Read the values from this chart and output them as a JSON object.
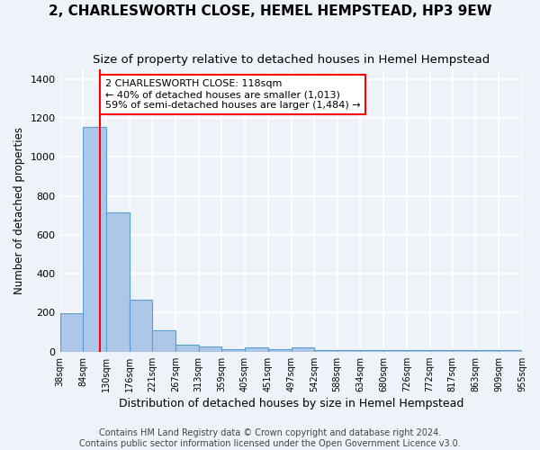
{
  "title": "2, CHARLESWORTH CLOSE, HEMEL HEMPSTEAD, HP3 9EW",
  "subtitle": "Size of property relative to detached houses in Hemel Hempstead",
  "xlabel": "Distribution of detached houses by size in Hemel Hempstead",
  "ylabel": "Number of detached properties",
  "bar_edges": [
    38,
    84,
    130,
    176,
    221,
    267,
    313,
    359,
    405,
    451,
    497,
    542,
    588,
    634,
    680,
    726,
    772,
    817,
    863,
    909,
    955
  ],
  "bar_heights": [
    197,
    1152,
    717,
    268,
    111,
    35,
    28,
    11,
    20,
    11,
    20,
    8,
    8,
    8,
    8,
    8,
    8,
    8,
    8,
    8
  ],
  "bar_color": "#aec6e8",
  "bar_edge_color": "#5a9fd4",
  "vline_x": 118,
  "annotation_text": "2 CHARLESWORTH CLOSE: 118sqm\n← 40% of detached houses are smaller (1,013)\n59% of semi-detached houses are larger (1,484) →",
  "annotation_box_color": "white",
  "annotation_box_edge_color": "red",
  "vline_color": "red",
  "ylim": [
    0,
    1450
  ],
  "yticks": [
    0,
    200,
    400,
    600,
    800,
    1000,
    1200,
    1400
  ],
  "tick_labels": [
    "38sqm",
    "84sqm",
    "130sqm",
    "176sqm",
    "221sqm",
    "267sqm",
    "313sqm",
    "359sqm",
    "405sqm",
    "451sqm",
    "497sqm",
    "542sqm",
    "588sqm",
    "634sqm",
    "680sqm",
    "726sqm",
    "772sqm",
    "817sqm",
    "863sqm",
    "909sqm",
    "955sqm"
  ],
  "footer_text": "Contains HM Land Registry data © Crown copyright and database right 2024.\nContains public sector information licensed under the Open Government Licence v3.0.",
  "background_color": "#eef2f9",
  "grid_color": "white",
  "title_fontsize": 11,
  "subtitle_fontsize": 9.5,
  "xlabel_fontsize": 9,
  "ylabel_fontsize": 8.5,
  "footer_fontsize": 7,
  "annotation_fontsize": 8
}
